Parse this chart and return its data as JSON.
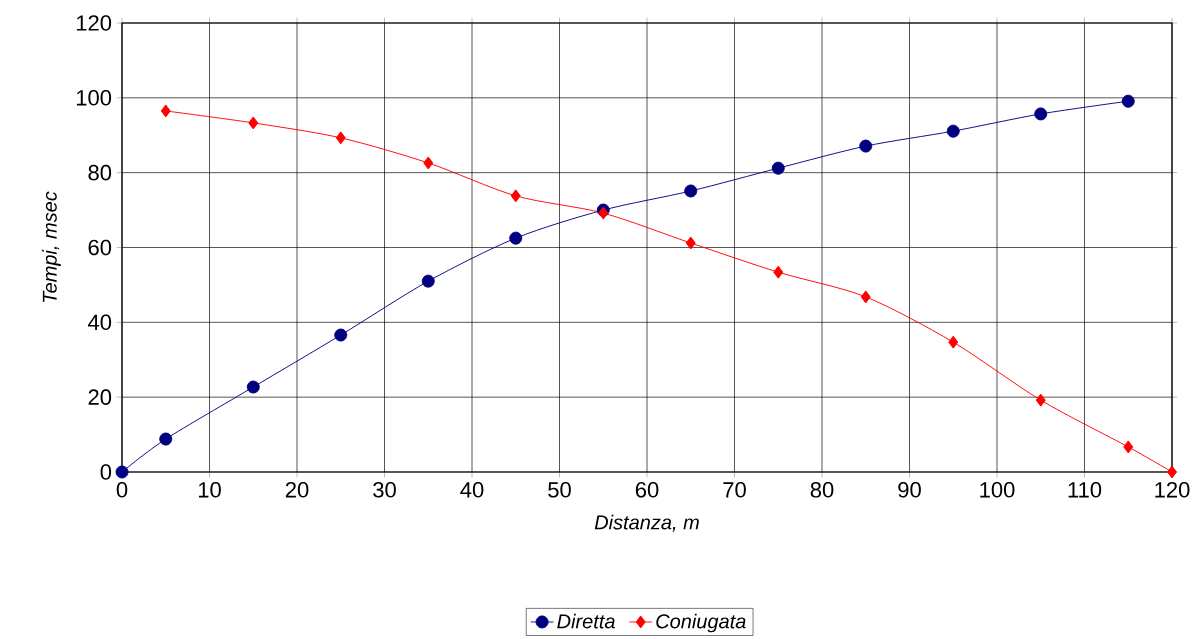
{
  "chart_data": {
    "type": "line",
    "xlabel": "Distanza, m",
    "ylabel": "Tempi, msec",
    "xlim": [
      0,
      120
    ],
    "ylim": [
      0,
      120
    ],
    "xticks": [
      0,
      10,
      20,
      30,
      40,
      50,
      60,
      70,
      80,
      90,
      100,
      110,
      120
    ],
    "yticks": [
      0,
      20,
      40,
      60,
      80,
      100,
      120
    ],
    "grid": true,
    "legend": "bottom",
    "series": [
      {
        "name": "Diretta",
        "color": "#000080",
        "marker": "circle",
        "x": [
          0,
          5,
          15,
          25,
          35,
          45,
          55,
          65,
          75,
          85,
          95,
          105,
          115
        ],
        "values": [
          0,
          8.8,
          22.7,
          36.6,
          51.0,
          62.5,
          70.0,
          75.1,
          81.2,
          87.1,
          91.1,
          95.7,
          99.1
        ]
      },
      {
        "name": "Coniugata",
        "color": "#ff0000",
        "marker": "diamond",
        "x": [
          5,
          15,
          25,
          35,
          45,
          55,
          65,
          75,
          85,
          95,
          105,
          115,
          120
        ],
        "values": [
          96.5,
          93.3,
          89.3,
          82.6,
          73.8,
          69.2,
          61.2,
          53.4,
          46.8,
          34.7,
          19.2,
          6.7,
          0
        ]
      }
    ]
  }
}
